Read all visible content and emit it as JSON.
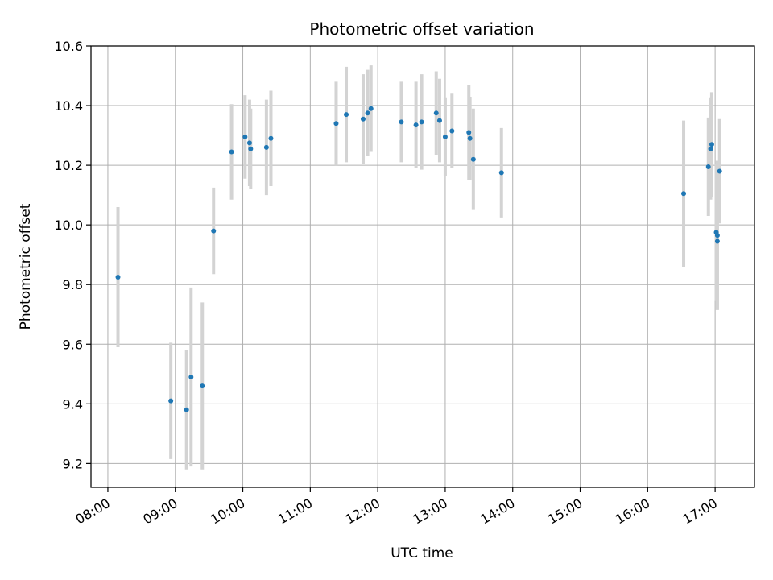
{
  "chart_data": {
    "type": "scatter",
    "title": "Photometric offset variation",
    "xlabel": "UTC time",
    "ylabel": "Photometric offset",
    "xlim": [
      "07:45",
      "17:35"
    ],
    "ylim": [
      9.12,
      10.6
    ],
    "x_ticks": [
      "08:00",
      "09:00",
      "10:00",
      "11:00",
      "12:00",
      "13:00",
      "14:00",
      "15:00",
      "16:00",
      "17:00"
    ],
    "y_ticks": [
      "9.2",
      "9.4",
      "9.6",
      "9.8",
      "10.0",
      "10.2",
      "10.4",
      "10.6"
    ],
    "grid": true,
    "point_color": "#1f77b4",
    "errorbar_color": "#d3d3d3",
    "points": [
      {
        "x": "08:09",
        "y": 9.825,
        "err": 0.235
      },
      {
        "x": "08:56",
        "y": 9.41,
        "err": 0.195
      },
      {
        "x": "09:10",
        "y": 9.38,
        "err": 0.2
      },
      {
        "x": "09:14",
        "y": 9.49,
        "err": 0.3
      },
      {
        "x": "09:24",
        "y": 9.46,
        "err": 0.28
      },
      {
        "x": "09:34",
        "y": 9.98,
        "err": 0.145
      },
      {
        "x": "09:50",
        "y": 10.245,
        "err": 0.16
      },
      {
        "x": "10:02",
        "y": 10.295,
        "err": 0.14
      },
      {
        "x": "10:06",
        "y": 10.275,
        "err": 0.145
      },
      {
        "x": "10:07",
        "y": 10.255,
        "err": 0.135
      },
      {
        "x": "10:21",
        "y": 10.26,
        "err": 0.16
      },
      {
        "x": "10:25",
        "y": 10.29,
        "err": 0.16
      },
      {
        "x": "11:23",
        "y": 10.34,
        "err": 0.14
      },
      {
        "x": "11:32",
        "y": 10.37,
        "err": 0.16
      },
      {
        "x": "11:47",
        "y": 10.355,
        "err": 0.15
      },
      {
        "x": "11:51",
        "y": 10.375,
        "err": 0.145
      },
      {
        "x": "11:54",
        "y": 10.39,
        "err": 0.145
      },
      {
        "x": "12:21",
        "y": 10.345,
        "err": 0.135
      },
      {
        "x": "12:34",
        "y": 10.335,
        "err": 0.145
      },
      {
        "x": "12:39",
        "y": 10.345,
        "err": 0.16
      },
      {
        "x": "12:52",
        "y": 10.375,
        "err": 0.14
      },
      {
        "x": "12:55",
        "y": 10.35,
        "err": 0.14
      },
      {
        "x": "13:00",
        "y": 10.295,
        "err": 0.13
      },
      {
        "x": "13:06",
        "y": 10.315,
        "err": 0.125
      },
      {
        "x": "13:21",
        "y": 10.31,
        "err": 0.16
      },
      {
        "x": "13:22",
        "y": 10.29,
        "err": 0.14
      },
      {
        "x": "13:25",
        "y": 10.22,
        "err": 0.17
      },
      {
        "x": "13:50",
        "y": 10.175,
        "err": 0.15
      },
      {
        "x": "16:32",
        "y": 10.105,
        "err": 0.245
      },
      {
        "x": "16:54",
        "y": 10.195,
        "err": 0.165
      },
      {
        "x": "16:56",
        "y": 10.255,
        "err": 0.17
      },
      {
        "x": "16:57",
        "y": 10.27,
        "err": 0.175
      },
      {
        "x": "17:01",
        "y": 9.975,
        "err": 0.23
      },
      {
        "x": "17:02",
        "y": 9.945,
        "err": 0.23
      },
      {
        "x": "17:02",
        "y": 9.965,
        "err": 0.25
      },
      {
        "x": "17:04",
        "y": 10.18,
        "err": 0.175
      }
    ]
  }
}
